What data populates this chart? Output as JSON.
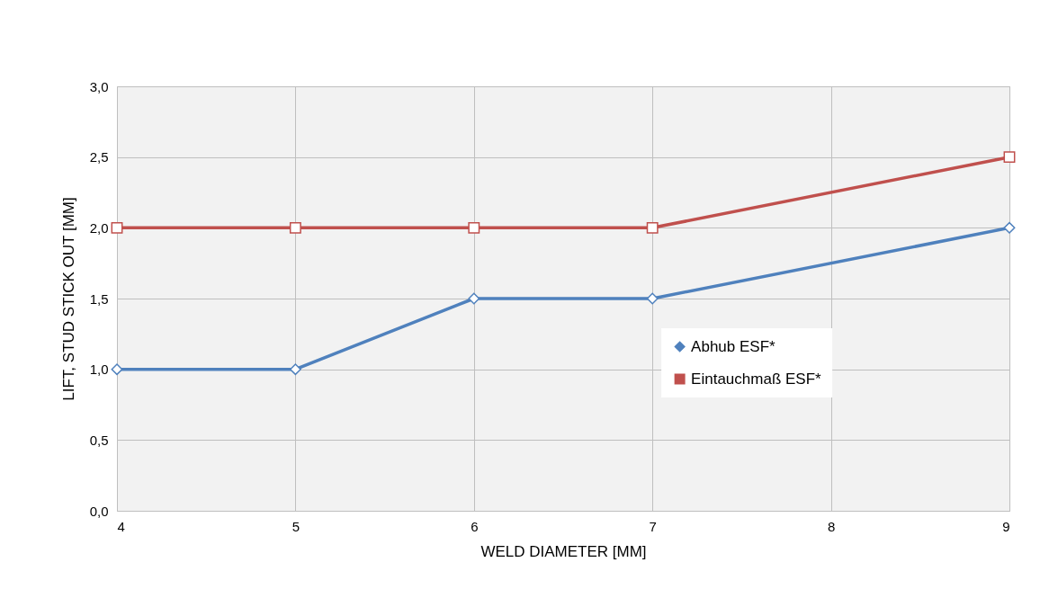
{
  "chart_data": {
    "type": "line",
    "xlabel": "WELD DIAMETER [MM]",
    "ylabel": "LIFT, STUD STICK OUT [MM]",
    "x": [
      4,
      5,
      6,
      7,
      9
    ],
    "series": [
      {
        "name": "Abhub ESF*",
        "color": "#4f81bd",
        "marker": "diamond",
        "values": [
          1,
          1,
          1.5,
          1.5,
          2
        ]
      },
      {
        "name": "Eintauchmaß ESF*",
        "color": "#c0504d",
        "marker": "square",
        "values": [
          2,
          2,
          2,
          2,
          2.5
        ]
      }
    ],
    "xlim": [
      4,
      9
    ],
    "xticks": [
      4,
      5,
      6,
      7,
      8,
      9
    ],
    "ylim": [
      0,
      3
    ],
    "yticks": [
      {
        "value": 0,
        "label": "0,0"
      },
      {
        "value": 0.5,
        "label": "0,5"
      },
      {
        "value": 1,
        "label": "1,0"
      },
      {
        "value": 1.5,
        "label": "1,5"
      },
      {
        "value": 2,
        "label": "2,0"
      },
      {
        "value": 2.5,
        "label": "2,5"
      },
      {
        "value": 3,
        "label": "3,0"
      }
    ],
    "grid": true,
    "legend": "right",
    "line_style": "solid"
  }
}
